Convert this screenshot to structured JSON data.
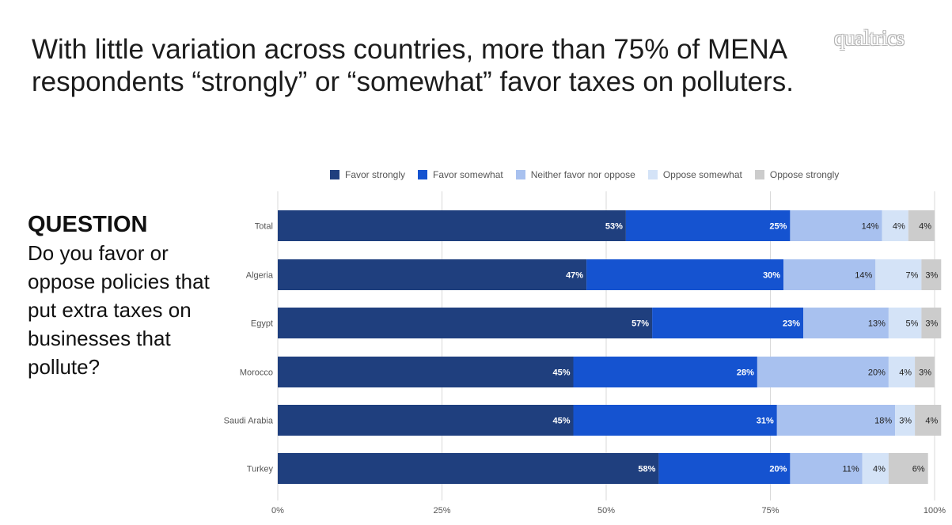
{
  "headline": {
    "line1": "With little variation across countries, more than 75% of MENA",
    "line2": "respondents “strongly” or “somewhat” favor taxes on polluters."
  },
  "brand": "qualtrics",
  "question": {
    "heading": "QUESTION",
    "body": "Do you favor or oppose policies that put extra taxes on businesses that pollute?"
  },
  "chart_data": {
    "type": "bar",
    "orientation": "horizontal",
    "stacked": true,
    "percent_stacked": true,
    "categories": [
      "Total",
      "Algeria",
      "Egypt",
      "Morocco",
      "Saudi Arabia",
      "Turkey"
    ],
    "series": [
      {
        "name": "Favor strongly",
        "color": "#1f3f7e",
        "label_color": "#ffffff",
        "values": [
          53,
          47,
          57,
          45,
          45,
          58
        ]
      },
      {
        "name": "Favor somewhat",
        "color": "#1553d0",
        "label_color": "#ffffff",
        "values": [
          25,
          30,
          23,
          28,
          31,
          20
        ]
      },
      {
        "name": "Neither favor nor oppose",
        "color": "#a8c1ef",
        "label_color": "#222222",
        "values": [
          14,
          14,
          13,
          20,
          18,
          11
        ]
      },
      {
        "name": "Oppose somewhat",
        "color": "#d4e3f7",
        "label_color": "#222222",
        "values": [
          4,
          7,
          5,
          4,
          3,
          4
        ]
      },
      {
        "name": "Oppose strongly",
        "color": "#cccccc",
        "label_color": "#222222",
        "values": [
          4,
          3,
          3,
          3,
          4,
          6
        ]
      }
    ],
    "x_ticks": [
      "0%",
      "25%",
      "50%",
      "75%",
      "100%"
    ],
    "xlim": [
      0,
      100
    ],
    "grid": true,
    "legend_position": "top",
    "xlabel": "",
    "ylabel": ""
  }
}
